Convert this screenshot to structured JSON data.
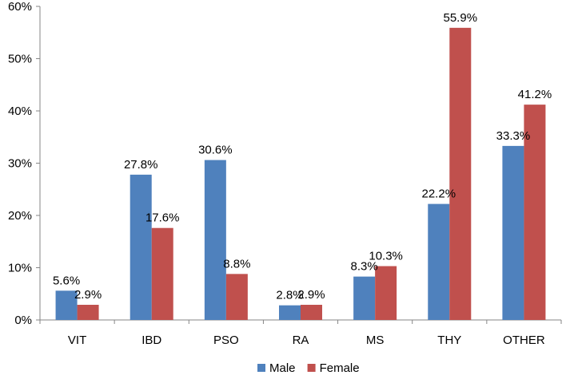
{
  "chart_data": {
    "type": "bar",
    "title": "",
    "xlabel": "",
    "ylabel": "",
    "ylim": [
      0,
      60
    ],
    "y_ticks": [
      "0%",
      "10%",
      "20%",
      "30%",
      "40%",
      "50%",
      "60%"
    ],
    "y_tick_values": [
      0,
      10,
      20,
      30,
      40,
      50,
      60
    ],
    "grid": false,
    "legend_position": "bottom",
    "categories": [
      "VIT",
      "IBD",
      "PSO",
      "RA",
      "MS",
      "THY",
      "OTHER"
    ],
    "series": [
      {
        "name": "Male",
        "color": "#4f81bd",
        "values": [
          5.6,
          27.8,
          30.6,
          2.8,
          8.3,
          22.2,
          33.3
        ],
        "labels": [
          "5.6%",
          "27.8%",
          "30.6%",
          "2.8%",
          "8.3%",
          "22.2%",
          "33.3%"
        ]
      },
      {
        "name": "Female",
        "color": "#c0504d",
        "values": [
          2.9,
          17.6,
          8.8,
          2.9,
          10.3,
          55.9,
          41.2
        ],
        "labels": [
          "2.9%",
          "17.6%",
          "8.8%",
          "2.9%",
          "10.3%",
          "55.9%",
          "41.2%"
        ]
      }
    ]
  }
}
